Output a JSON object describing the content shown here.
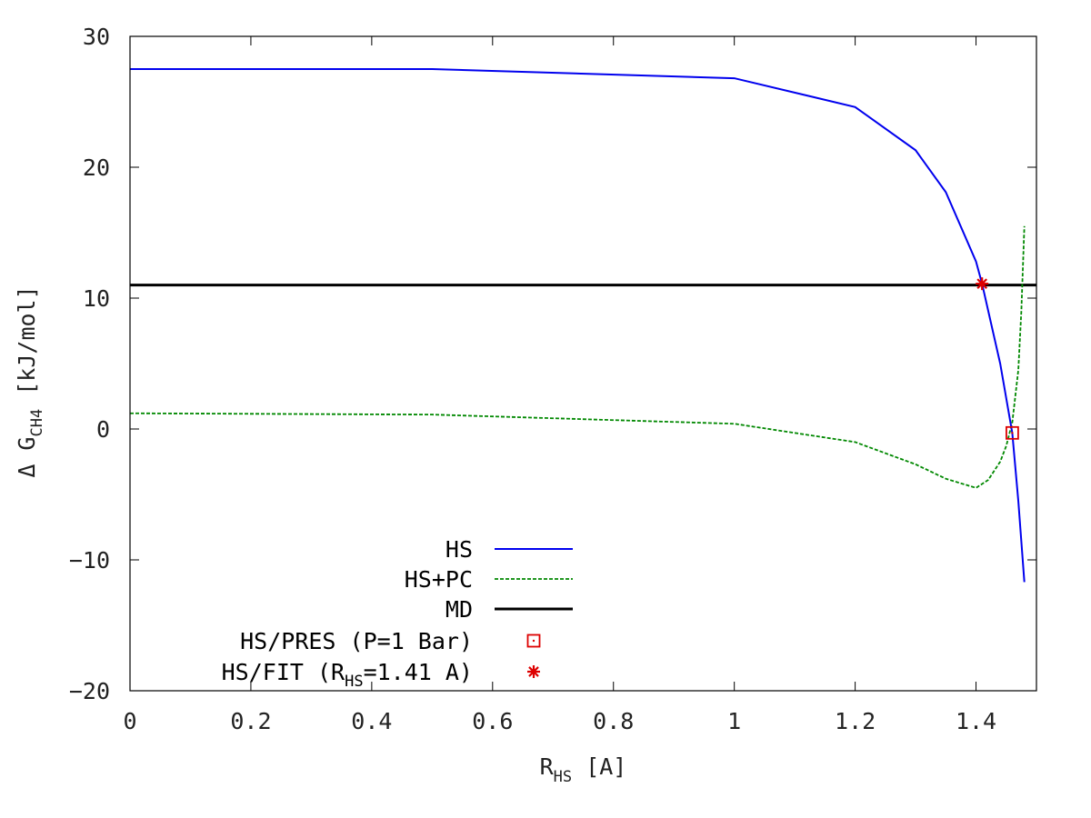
{
  "chart_data": {
    "type": "line",
    "xlabel": {
      "main": "R",
      "sub": "HS",
      "rest": " [A]"
    },
    "ylabel": {
      "main": "Δ G",
      "sub": "CH4",
      "rest": " [kJ/mol]"
    },
    "xlim": [
      0,
      1.5
    ],
    "ylim": [
      -20,
      30
    ],
    "xticks": [
      0,
      0.2,
      0.4,
      0.6,
      0.8,
      1,
      1.2,
      1.4
    ],
    "xtick_labels": [
      "0",
      "0.2",
      "0.4",
      "0.6",
      "0.8",
      "1",
      "1.2",
      "1.4"
    ],
    "yticks": [
      -20,
      -10,
      0,
      10,
      20,
      30
    ],
    "ytick_labels": [
      "−20",
      "−10",
      "0",
      "10",
      "20",
      "30"
    ],
    "grid": false,
    "legend_position": "bottom-left",
    "series": [
      {
        "name": "HS",
        "color": "#0000ee",
        "style": "solid",
        "x": [
          0,
          0.5,
          1.0,
          1.2,
          1.3,
          1.35,
          1.4,
          1.41,
          1.44,
          1.46,
          1.47,
          1.48
        ],
        "y": [
          27.5,
          27.5,
          26.8,
          24.6,
          21.3,
          18.1,
          12.8,
          11.1,
          5.0,
          -0.3,
          -5.5,
          -11.7
        ]
      },
      {
        "name": "HS+PC",
        "color": "#008800",
        "style": "dashed",
        "x": [
          0,
          0.5,
          1.0,
          1.2,
          1.3,
          1.35,
          1.4,
          1.42,
          1.44,
          1.45,
          1.46,
          1.47,
          1.475,
          1.48
        ],
        "y": [
          1.2,
          1.1,
          0.4,
          -1.0,
          -2.7,
          -3.8,
          -4.5,
          -3.9,
          -2.5,
          -1.3,
          0.5,
          4.5,
          9.0,
          15.5
        ]
      },
      {
        "name": "MD",
        "color": "#000000",
        "style": "solid-thick",
        "y_const": 11.0
      },
      {
        "name": "HS/PRES (P=1 Bar)",
        "legend_parts": {
          "main": "HS/PRES (P=1 Bar)"
        },
        "color": "#dd0000",
        "marker": "open-square",
        "points": [
          {
            "x": 1.46,
            "y": -0.3
          }
        ]
      },
      {
        "name": "HS/FIT (R_HS=1.41 A)",
        "legend_parts": {
          "pre": "HS/FIT (R",
          "sub": "HS",
          "post": "=1.41 A)"
        },
        "color": "#dd0000",
        "marker": "asterisk",
        "points": [
          {
            "x": 1.41,
            "y": 11.1
          }
        ]
      }
    ]
  }
}
